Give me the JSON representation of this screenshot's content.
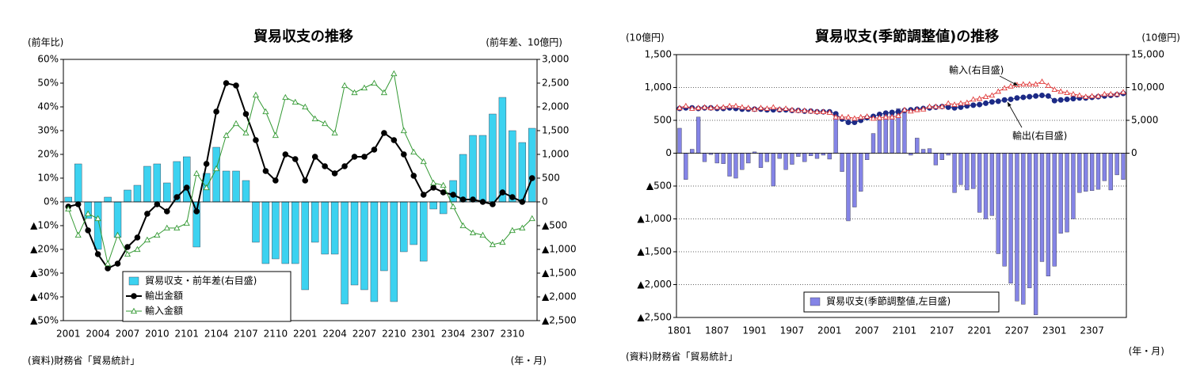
{
  "chart_data": [
    {
      "type": "bar_line",
      "title": "貿易収支の推移",
      "y_label": "(前年比)",
      "y2_label": "(前年差、10億円)",
      "source": "(資料)財務省「貿易統計」",
      "x_label": "(年・月)",
      "categories": [
        "2001",
        null,
        null,
        "2004",
        null,
        null,
        "2007",
        null,
        null,
        "2010",
        null,
        null,
        "2101",
        null,
        null,
        "2104",
        null,
        null,
        "2107",
        null,
        null,
        "2110",
        null,
        null,
        "2201",
        null,
        null,
        "2204",
        null,
        null,
        "2207",
        null,
        null,
        "2210",
        null,
        null,
        "2301",
        null,
        null,
        "2304",
        null,
        null,
        "2307",
        null,
        null,
        "2310",
        null,
        null
      ],
      "series": [
        {
          "name": "貿易収支・前年差(右目盛)",
          "type": "bar",
          "axis": "y2",
          "color": "#3cd2f0",
          "values": [
            100,
            800,
            -350,
            -1000,
            100,
            -750,
            250,
            350,
            750,
            800,
            400,
            850,
            950,
            -950,
            600,
            1150,
            650,
            650,
            450,
            -850,
            -1300,
            -1200,
            -1300,
            -1300,
            -1850,
            -850,
            -1100,
            -1100,
            -2150,
            -1750,
            -1850,
            -2100,
            -1450,
            -2100,
            -1050,
            -900,
            -1250,
            -150,
            -250,
            450,
            1000,
            1400,
            1400,
            1850,
            2200,
            1500,
            1250,
            1550
          ]
        },
        {
          "name": "輸出金額",
          "type": "line",
          "axis": "y",
          "color": "#000000",
          "marker": "circle",
          "marker_filled": true,
          "values": [
            -2,
            -1,
            -12,
            -22,
            -28,
            -26,
            -19,
            -15,
            -5,
            -1,
            -4,
            2,
            6,
            -4,
            16,
            38,
            50,
            49,
            37,
            26,
            13,
            9,
            20,
            18,
            9,
            19,
            15,
            12,
            15,
            19,
            19,
            22,
            29,
            26,
            20,
            11,
            3,
            6,
            4,
            3,
            1,
            1,
            0,
            -1,
            4,
            2,
            0,
            10
          ]
        },
        {
          "name": "輸入金額",
          "type": "line",
          "axis": "y",
          "color": "#339933",
          "marker": "triangle",
          "marker_filled": false,
          "values": [
            -3,
            -14,
            -5,
            -7,
            -26,
            -14,
            -22,
            -20,
            -16,
            -14,
            -11,
            -11,
            -9,
            12,
            6,
            14,
            28,
            33,
            29,
            45,
            38,
            28,
            44,
            42,
            40,
            35,
            33,
            29,
            49,
            46,
            48,
            50,
            46,
            54,
            30,
            21,
            17,
            8,
            7,
            -2,
            -10,
            -13,
            -14,
            -18,
            -17,
            -12,
            -11,
            -7
          ]
        }
      ],
      "ylim": [
        -50,
        60
      ],
      "yticks": [
        {
          "value": 60,
          "label": "60%"
        },
        {
          "value": 50,
          "label": "50%"
        },
        {
          "value": 40,
          "label": "40%"
        },
        {
          "value": 30,
          "label": "30%"
        },
        {
          "value": 20,
          "label": "20%"
        },
        {
          "value": 10,
          "label": "10%"
        },
        {
          "value": 0,
          "label": "0%"
        },
        {
          "value": -10,
          "label": "▲10%"
        },
        {
          "value": -20,
          "label": "▲20%"
        },
        {
          "value": -30,
          "label": "▲30%"
        },
        {
          "value": -40,
          "label": "▲40%"
        },
        {
          "value": -50,
          "label": "▲50%"
        }
      ],
      "y2lim": [
        -2500,
        3000
      ],
      "y2ticks": [
        {
          "value": 3000,
          "label": "3,000"
        },
        {
          "value": 2500,
          "label": "2,500"
        },
        {
          "value": 2000,
          "label": "2,000"
        },
        {
          "value": 1500,
          "label": "1,500"
        },
        {
          "value": 1000,
          "label": "1,000"
        },
        500,
        0,
        {
          "value": -500,
          "label": "▲500"
        },
        {
          "value": -1000,
          "label": "▲1,000"
        },
        {
          "value": -1500,
          "label": "▲1,500"
        },
        {
          "value": -2000,
          "label": "▲2,000"
        },
        {
          "value": -2500,
          "label": "▲2,500"
        }
      ],
      "grid": false,
      "legend": "lower left"
    },
    {
      "type": "bar_line",
      "title": "貿易収支(季節調整値)の推移",
      "y_label": "(10億円)",
      "y2_label": "(10億円)",
      "source": "(資料)財務省「貿易統計」",
      "x_label": "(年・月)",
      "categories": [
        "1801",
        null,
        null,
        null,
        null,
        null,
        "1807",
        null,
        null,
        null,
        null,
        null,
        "1901",
        null,
        null,
        null,
        null,
        null,
        "1907",
        null,
        null,
        null,
        null,
        null,
        "2001",
        null,
        null,
        null,
        null,
        null,
        "2007",
        null,
        null,
        null,
        null,
        null,
        "2101",
        null,
        null,
        null,
        null,
        null,
        "2107",
        null,
        null,
        null,
        null,
        null,
        "2201",
        null,
        null,
        null,
        null,
        null,
        "2207",
        null,
        null,
        null,
        null,
        null,
        "2301",
        null,
        null,
        null,
        null,
        null,
        "2307",
        null,
        null,
        null,
        null,
        null
      ],
      "series": [
        {
          "name": "貿易収支(季節調整値,左目盛)",
          "type": "bar",
          "axis": "y",
          "color": "#8484e6",
          "in_legend": true,
          "values": [
            380,
            -400,
            60,
            550,
            -130,
            -20,
            -150,
            -160,
            -350,
            -380,
            -250,
            -150,
            20,
            -220,
            -130,
            -500,
            -80,
            -250,
            -170,
            -50,
            -130,
            -40,
            -80,
            -30,
            -90,
            620,
            -280,
            -1030,
            -820,
            -580,
            -100,
            300,
            500,
            620,
            650,
            680,
            650,
            -30,
            230,
            60,
            70,
            -180,
            -100,
            -30,
            -600,
            -480,
            -560,
            -540,
            -900,
            -1000,
            -950,
            -1530,
            -1720,
            -1980,
            -2250,
            -2300,
            -2050,
            -2460,
            -1650,
            -1870,
            -1720,
            -1220,
            -1200,
            -1000,
            -600,
            -580,
            -570,
            -550,
            -420,
            -560,
            -330,
            -400
          ]
        },
        {
          "name": "輸出(右目盛)",
          "type": "line",
          "axis": "y2",
          "color": "#1c2a86",
          "marker": "circle",
          "marker_filled": true,
          "in_legend": false,
          "values": [
            6800,
            6900,
            6900,
            6800,
            6900,
            6900,
            6800,
            6800,
            6900,
            6800,
            6700,
            6700,
            6700,
            6700,
            6600,
            6600,
            6600,
            6600,
            6500,
            6500,
            6400,
            6400,
            6300,
            6300,
            6300,
            6000,
            5200,
            4700,
            4700,
            5000,
            5400,
            5600,
            5900,
            6100,
            6200,
            6300,
            6500,
            6600,
            6700,
            6800,
            6900,
            7000,
            7100,
            7000,
            6900,
            7000,
            7200,
            7300,
            7400,
            7600,
            7800,
            7900,
            8100,
            8200,
            8400,
            8500,
            8600,
            8700,
            8800,
            8700,
            8000,
            8100,
            8200,
            8300,
            8400,
            8400,
            8500,
            8600,
            8700,
            8800,
            8900,
            9100
          ]
        },
        {
          "name": "輸入(右目盛)",
          "type": "line",
          "axis": "y2",
          "color": "#e03c3c",
          "marker": "triangle",
          "marker_filled": false,
          "in_legend": false,
          "values": [
            6900,
            7200,
            6800,
            6900,
            7000,
            6900,
            7000,
            7000,
            7200,
            7200,
            7000,
            6900,
            6700,
            6900,
            6800,
            7000,
            6700,
            6800,
            6600,
            6500,
            6500,
            6400,
            6300,
            6300,
            6200,
            5500,
            5500,
            5500,
            5300,
            5500,
            5600,
            5300,
            5400,
            5500,
            5500,
            5700,
            6600,
            6400,
            6600,
            6700,
            7100,
            7100,
            7100,
            7600,
            7400,
            7600,
            7700,
            8200,
            8300,
            8600,
            8800,
            9400,
            9900,
            10200,
            10400,
            10500,
            10500,
            10500,
            10900,
            10300,
            9700,
            9400,
            9200,
            9000,
            8800,
            8600,
            8700,
            8700,
            9000,
            9000,
            9000,
            9300
          ]
        }
      ],
      "ylim": [
        -2500,
        1500
      ],
      "yticks": [
        {
          "value": 1500,
          "label": "1,500"
        },
        {
          "value": 1000,
          "label": "1,000"
        },
        500,
        0,
        {
          "value": -500,
          "label": "▲500"
        },
        {
          "value": -1000,
          "label": "▲1,000"
        },
        {
          "value": -1500,
          "label": "▲1,500"
        },
        {
          "value": -2000,
          "label": "▲2,000"
        },
        {
          "value": -2500,
          "label": "▲2,500"
        }
      ],
      "y2lim": [
        -25000,
        15000
      ],
      "y2ticks": [
        {
          "value": 15000,
          "label": "15,000"
        },
        {
          "value": 10000,
          "label": "10,000"
        },
        {
          "value": 5000,
          "label": "5,000"
        },
        0
      ],
      "grid": true,
      "legend": "lower center"
    }
  ]
}
